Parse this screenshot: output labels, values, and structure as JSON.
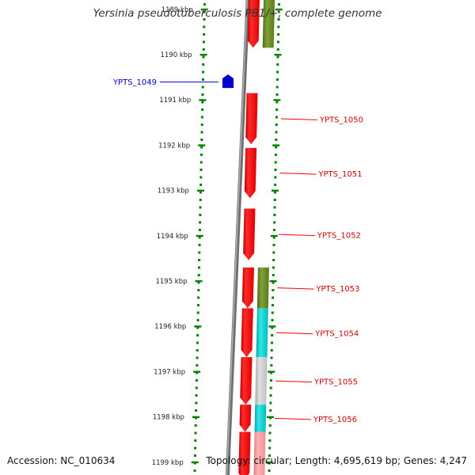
{
  "title": "Yersinia pseudotuberculosis PB1/+, complete genome",
  "footer": {
    "accession": "Accession: NC_010634",
    "summary": "Topology: circular; Length: 4,695,619 bp; Genes: 4,247"
  },
  "colors": {
    "forward_gene": "#ff0000",
    "reverse_gene": "#0000cc",
    "scale_ticks": "#008000",
    "cog_olive": "#6b8e23",
    "cog_cyan": "#00cccc",
    "cog_gray": "#c8c8c8",
    "cog_pink": "#ff9999",
    "backbone": "#808080"
  },
  "scale": {
    "unit": "kbp",
    "ticks": [
      {
        "label": "1189 kbp",
        "kbp": 1189
      },
      {
        "label": "1190 kbp",
        "kbp": 1190
      },
      {
        "label": "1191 kbp",
        "kbp": 1191
      },
      {
        "label": "1192 kbp",
        "kbp": 1192
      },
      {
        "label": "1193 kbp",
        "kbp": 1193
      },
      {
        "label": "1194 kbp",
        "kbp": 1194
      },
      {
        "label": "1195 kbp",
        "kbp": 1195
      },
      {
        "label": "1196 kbp",
        "kbp": 1196
      },
      {
        "label": "1197 kbp",
        "kbp": 1197
      },
      {
        "label": "1198 kbp",
        "kbp": 1198
      },
      {
        "label": "1199 kbp",
        "kbp": 1199
      }
    ]
  },
  "genes": [
    {
      "name": "",
      "strand": "+",
      "start_kbp": 1188.75,
      "end_kbp": 1189.85,
      "cog": "olive"
    },
    {
      "name": "YPTS_1049",
      "strand": "-",
      "start_kbp": 1190.49,
      "end_kbp": 1190.72,
      "cog": ""
    },
    {
      "name": "YPTS_1050",
      "strand": "+",
      "start_kbp": 1190.85,
      "end_kbp": 1191.98,
      "cog": ""
    },
    {
      "name": "YPTS_1051",
      "strand": "+",
      "start_kbp": 1192.06,
      "end_kbp": 1193.17,
      "cog": ""
    },
    {
      "name": "YPTS_1052",
      "strand": "+",
      "start_kbp": 1193.4,
      "end_kbp": 1194.54,
      "cog": ""
    },
    {
      "name": "YPTS_1053",
      "strand": "+",
      "start_kbp": 1194.7,
      "end_kbp": 1195.6,
      "cog": "olive"
    },
    {
      "name": "YPTS_1054",
      "strand": "+",
      "start_kbp": 1195.6,
      "end_kbp": 1196.68,
      "cog": "cyan"
    },
    {
      "name": "YPTS_1055",
      "strand": "+",
      "start_kbp": 1196.68,
      "end_kbp": 1197.73,
      "cog": "gray"
    },
    {
      "name": "YPTS_1056",
      "strand": "+",
      "start_kbp": 1197.73,
      "end_kbp": 1198.33,
      "cog": "cyan"
    },
    {
      "name": "",
      "strand": "+",
      "start_kbp": 1198.33,
      "end_kbp": 1199.4,
      "cog": "pink"
    }
  ]
}
